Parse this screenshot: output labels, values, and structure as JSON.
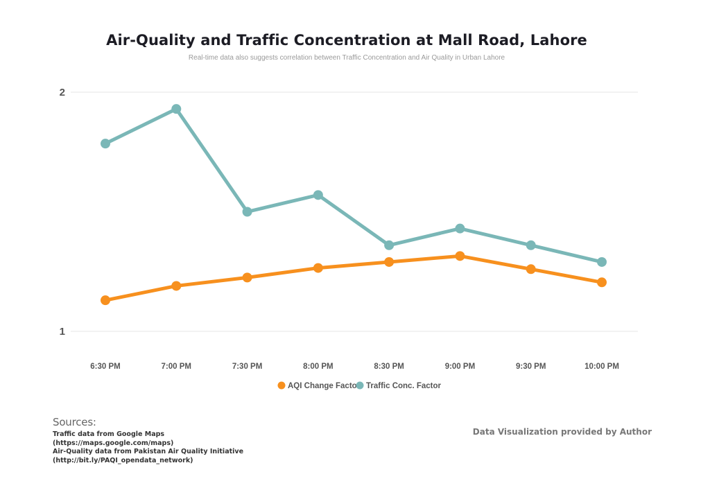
{
  "chart_data": {
    "type": "line",
    "title": "Air-Quality and Traffic Concentration at Mall Road, Lahore",
    "subtitle": "Real-time data also suggests correlation between Traffic Concentration and Air Quality in Urban Lahore",
    "categories": [
      "6:30 PM",
      "7:00 PM",
      "7:30 PM",
      "8:00 PM",
      "8:30 PM",
      "9:00 PM",
      "9:30 PM",
      "10:00 PM"
    ],
    "series": [
      {
        "name": "AQI Change Factor",
        "color": "#f7901e",
        "values": [
          1.13,
          1.19,
          1.225,
          1.265,
          1.29,
          1.315,
          1.26,
          1.205
        ]
      },
      {
        "name": "Traffic Conc. Factor",
        "color": "#7ab7b7",
        "values": [
          1.785,
          1.93,
          1.5,
          1.57,
          1.36,
          1.43,
          1.36,
          1.29
        ]
      }
    ],
    "yticks": [
      "1",
      "2"
    ],
    "ylim": [
      1,
      2
    ],
    "xlabel": "",
    "ylabel": "",
    "grid": true,
    "legend_position": "bottom"
  },
  "sources": {
    "heading": "Sources:",
    "lines": [
      "Traffic data from Google Maps",
      "(https://maps.google.com/maps)",
      "Air-Quality data from Pakistan Air Quality Initiative",
      "(http://bit.ly/PAQI_opendata_network)"
    ]
  },
  "credit": "Data Visualization provided by Author"
}
